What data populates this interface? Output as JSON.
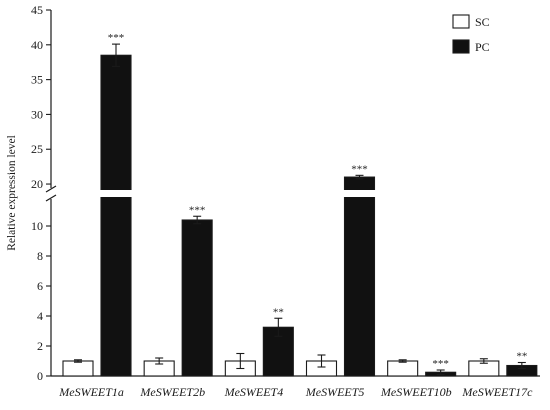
{
  "chart_data": {
    "type": "bar",
    "title": "",
    "xlabel": "",
    "ylabel": "Relative expression level",
    "categories": [
      "MeSWEET1a",
      "MeSWEET2b",
      "MeSWEET4",
      "MeSWEET5",
      "MeSWEET10b",
      "MeSWEET17c"
    ],
    "series": [
      {
        "name": "SC",
        "fill": "#ffffff",
        "values": [
          1.0,
          1.0,
          1.0,
          1.0,
          1.0,
          1.0
        ],
        "errors": [
          0.08,
          0.2,
          0.5,
          0.4,
          0.08,
          0.15
        ]
      },
      {
        "name": "PC",
        "fill": "#111111",
        "values": [
          38.5,
          10.4,
          3.25,
          21.0,
          0.25,
          0.7
        ],
        "errors": [
          1.6,
          0.25,
          0.6,
          0.25,
          0.15,
          0.2
        ]
      }
    ],
    "significance": [
      "***",
      "***",
      "**",
      "***",
      "***",
      "**"
    ],
    "axis_break": {
      "lower_range": [
        0,
        12
      ],
      "upper_range": [
        19,
        45
      ]
    },
    "lower_ticks": [
      0,
      2,
      4,
      6,
      8,
      10
    ],
    "upper_ticks": [
      20,
      25,
      30,
      35,
      40,
      45
    ],
    "legend_position": "top-right",
    "grid": false
  }
}
